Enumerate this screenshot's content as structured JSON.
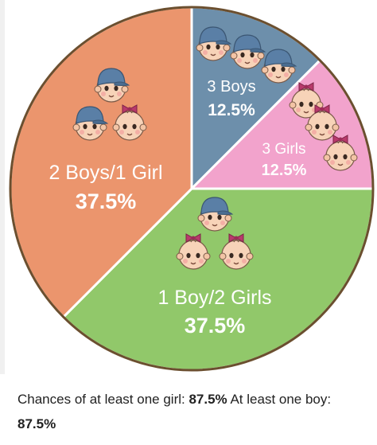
{
  "chart_data": {
    "type": "pie",
    "title": "",
    "slices": [
      {
        "label": "3 Boys",
        "value": 12.5,
        "value_label": "12.5%",
        "color": "#6d8fab",
        "faces": [
          "boy",
          "boy",
          "boy"
        ]
      },
      {
        "label": "3 Girls",
        "value": 12.5,
        "value_label": "12.5%",
        "color": "#f2a3cc",
        "faces": [
          "girl",
          "girl",
          "girl"
        ]
      },
      {
        "label": "1 Boy/2 Girls",
        "value": 37.5,
        "value_label": "37.5%",
        "color": "#91c86a",
        "faces": [
          "boy",
          "girl",
          "girl"
        ]
      },
      {
        "label": "2 Boys/1 Girl",
        "value": 37.5,
        "value_label": "37.5%",
        "color": "#eb956d",
        "faces": [
          "boy",
          "boy",
          "girl"
        ]
      }
    ],
    "start_angle_deg": 0,
    "border_color": "#6b4f2f"
  },
  "caption": {
    "part1": "Chances of at least one girl:",
    "value1": "87.5%",
    "part2": "At least one boy:",
    "value2": "87.5%"
  }
}
